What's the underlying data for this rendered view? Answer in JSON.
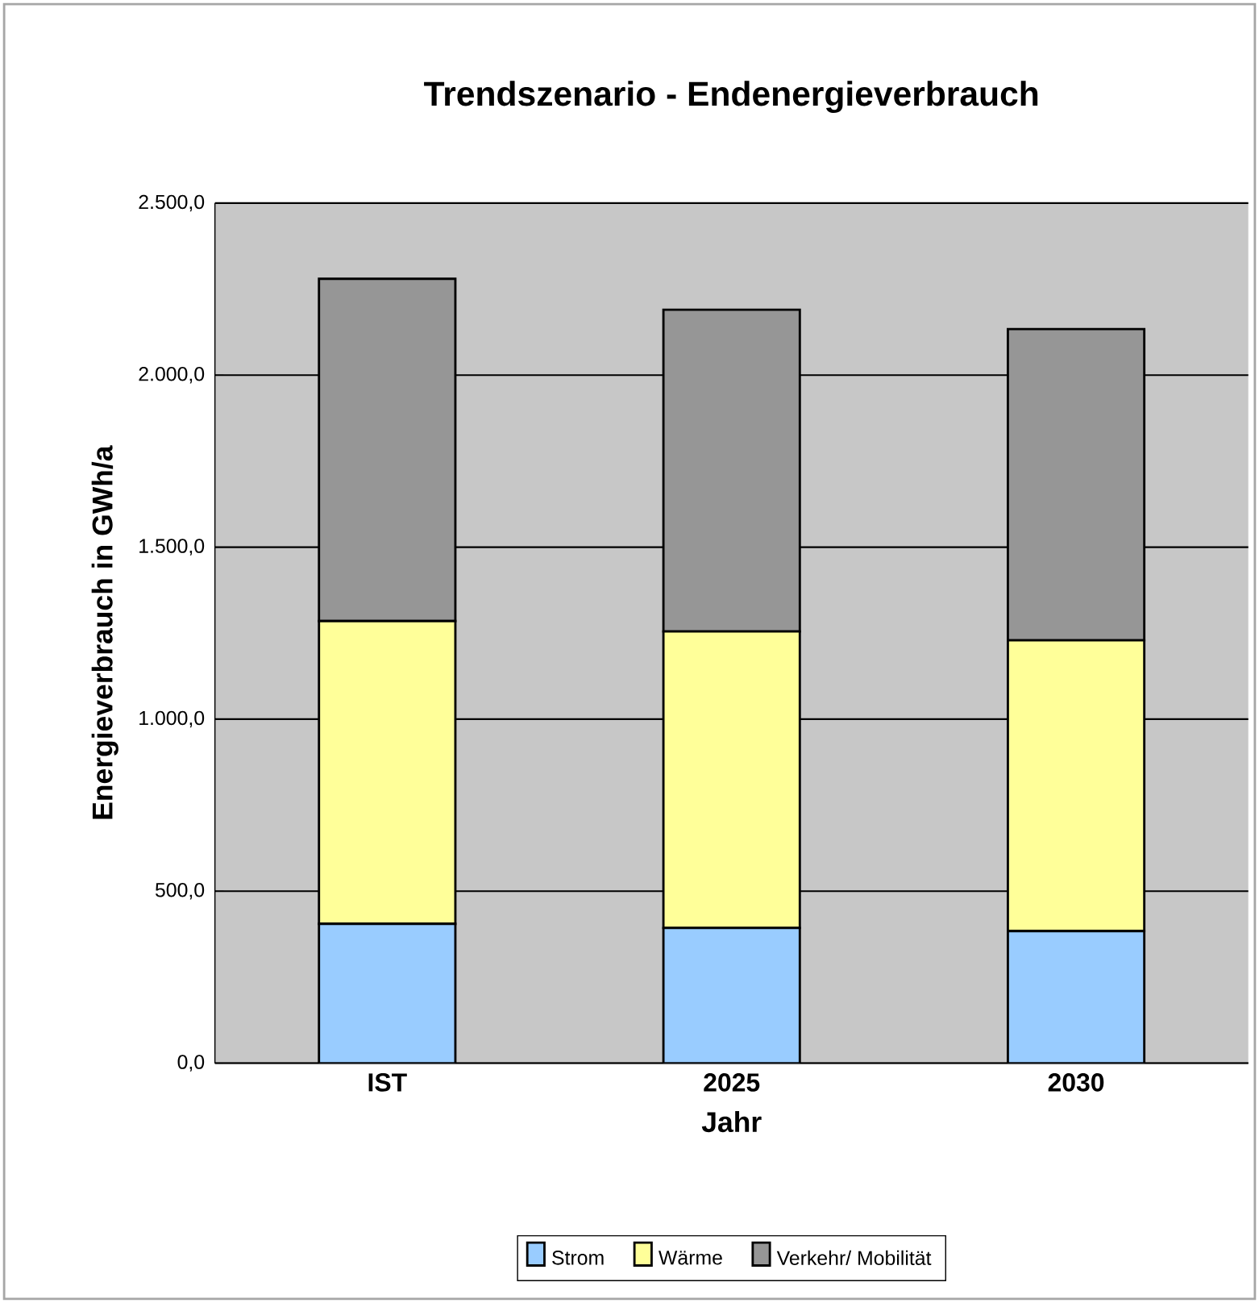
{
  "chart_data": {
    "type": "bar",
    "stacked": true,
    "title": "Trendszenario - Endenergieverbrauch",
    "xlabel": "Jahr",
    "ylabel": "Energieverbrauch in GWh/a",
    "categories": [
      "IST",
      "2025",
      "2030"
    ],
    "series": [
      {
        "name": "Strom",
        "color": "#99ccff",
        "values": [
          405,
          393,
          384
        ]
      },
      {
        "name": "Wärme",
        "color": "#ffff99",
        "values": [
          880,
          862,
          845
        ]
      },
      {
        "name": "Verkehr/ Mobilität",
        "color": "#969696",
        "values": [
          995,
          935,
          905
        ]
      }
    ],
    "ylim": [
      0,
      2500
    ],
    "yticks": [
      {
        "value": 0,
        "label": "0,0"
      },
      {
        "value": 500,
        "label": "500,0"
      },
      {
        "value": 1000,
        "label": "1.000,0"
      },
      {
        "value": 1500,
        "label": "1.500,0"
      },
      {
        "value": 2000,
        "label": "2.000,0"
      },
      {
        "value": 2500,
        "label": "2.500,0"
      }
    ],
    "grid": "y",
    "legend": "bottom"
  }
}
